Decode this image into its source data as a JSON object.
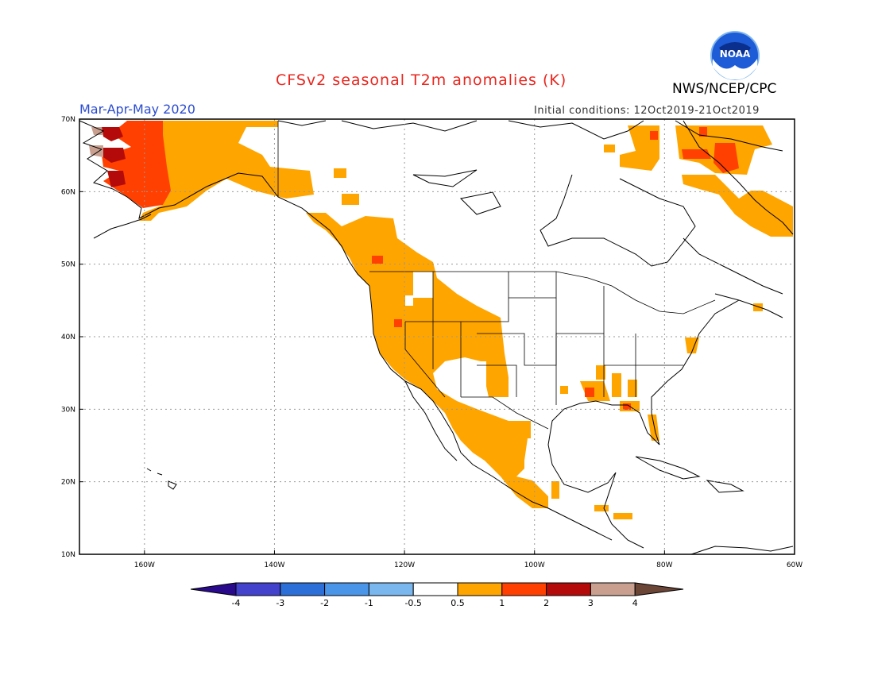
{
  "header": {
    "title": "CFSv2 seasonal T2m anomalies (K)",
    "agency": "NWS/NCEP/CPC",
    "period": "Mar-Apr-May 2020",
    "initial_conditions": "Initial conditions: 12Oct2019-21Oct2019",
    "logo_text": "NOAA"
  },
  "colors": {
    "title": "#e8261e",
    "period": "#2b4ccf",
    "anom_05_1": "#ffa500",
    "anom_1_2": "#ff4000",
    "anom_2_3": "#b40a0a",
    "anom_3_4": "#c9a08f",
    "neg_4": "#2a0a8c",
    "neg_3": "#4242cc",
    "neg_2": "#2d6fd8",
    "neg_1": "#4a95e8",
    "neg_05": "#7ab7ef",
    "pos_4": "#6b4536",
    "coast": "#000000",
    "grid": "#999999"
  },
  "map": {
    "lat_labels": [
      "70N",
      "60N",
      "50N",
      "40N",
      "30N",
      "20N",
      "10N"
    ],
    "lon_labels": [
      "160W",
      "140W",
      "120W",
      "100W",
      "80W",
      "60W"
    ]
  },
  "colorbar": {
    "labels": [
      "-4",
      "-3",
      "-2",
      "-1",
      "-0.5",
      "0.5",
      "1",
      "2",
      "3",
      "4"
    ]
  }
}
